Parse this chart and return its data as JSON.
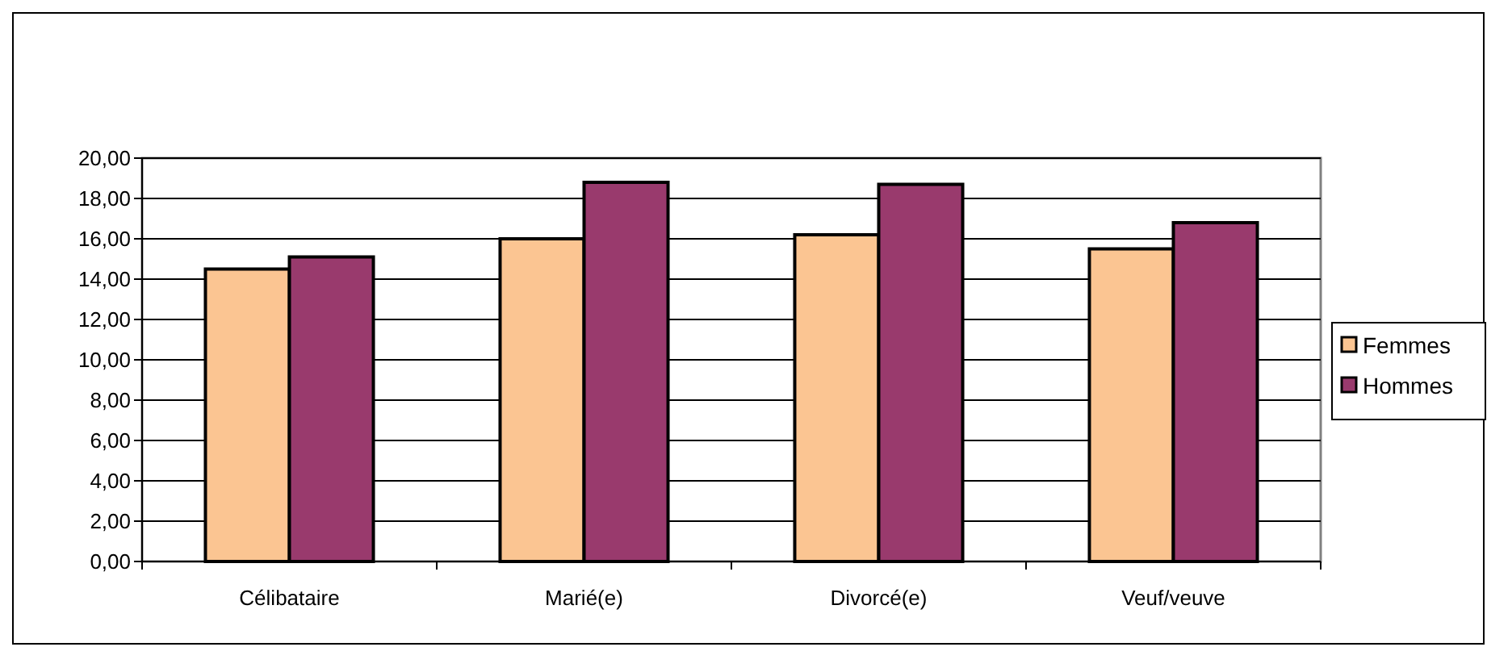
{
  "chart_data": {
    "type": "bar",
    "categories": [
      "Célibataire",
      "Marié(e)",
      "Divorcé(e)",
      "Veuf/veuve"
    ],
    "series": [
      {
        "name": "Femmes",
        "color": "#fbc592",
        "values": [
          14.5,
          16.0,
          16.2,
          15.5
        ]
      },
      {
        "name": "Hommes",
        "color": "#993a6d",
        "values": [
          15.1,
          18.8,
          18.7,
          16.8
        ]
      }
    ],
    "ylim": [
      0,
      20
    ],
    "yticks": [
      {
        "value": 0,
        "label": "0,00"
      },
      {
        "value": 2,
        "label": "2,00"
      },
      {
        "value": 4,
        "label": "4,00"
      },
      {
        "value": 6,
        "label": "6,00"
      },
      {
        "value": 8,
        "label": "8,00"
      },
      {
        "value": 10,
        "label": "10,00"
      },
      {
        "value": 12,
        "label": "12,00"
      },
      {
        "value": 14,
        "label": "14,00"
      },
      {
        "value": 16,
        "label": "16,00"
      },
      {
        "value": 18,
        "label": "18,00"
      },
      {
        "value": 20,
        "label": "20,00"
      }
    ],
    "grid": "y",
    "legend": "right"
  }
}
